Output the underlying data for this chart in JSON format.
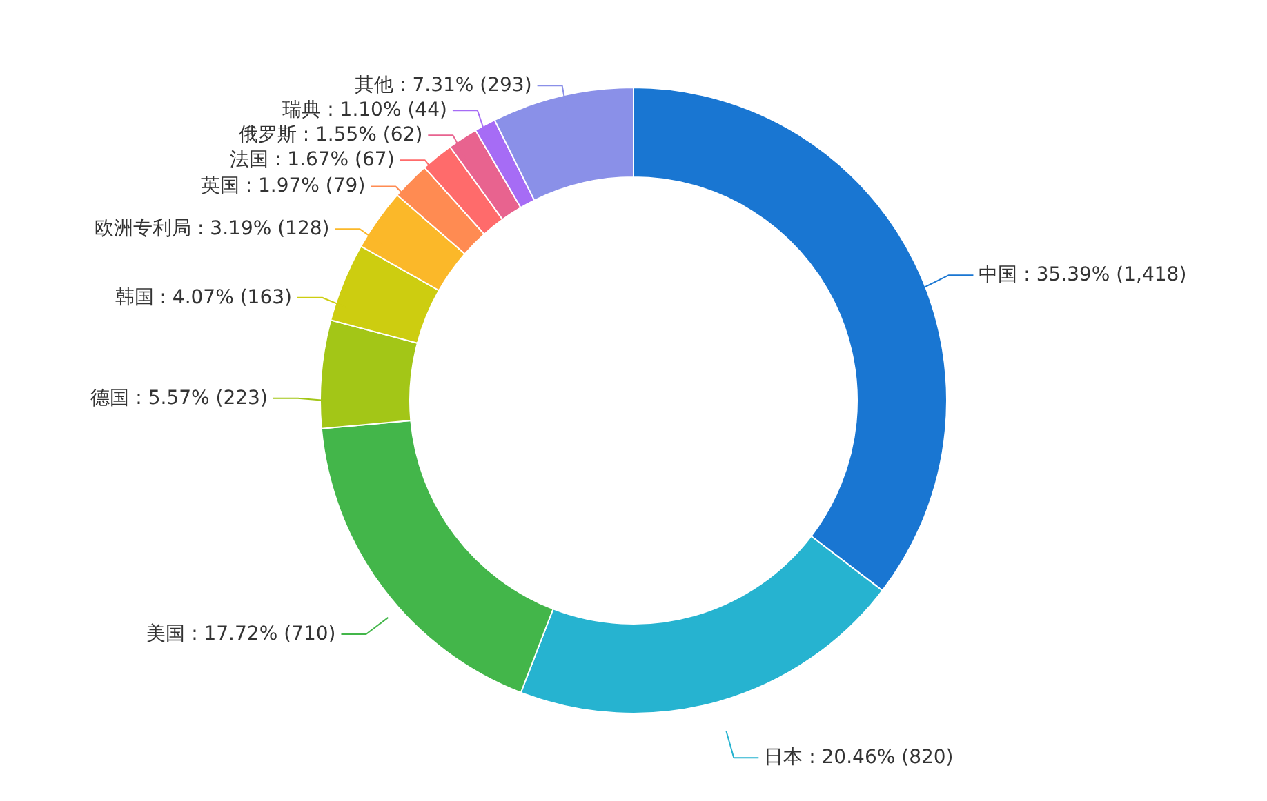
{
  "chart_data": {
    "type": "donut",
    "categories": [
      "中国",
      "日本",
      "美国",
      "德国",
      "韩国",
      "欧洲专利局",
      "英国",
      "法国",
      "俄罗斯",
      "瑞典",
      "其他"
    ],
    "values": [
      1418,
      820,
      710,
      223,
      163,
      128,
      79,
      67,
      62,
      44,
      293
    ],
    "value_labels": [
      "35.39% (1,418)",
      "20.46% (820)",
      "17.72% (710)",
      "5.57% (223)",
      "4.07% (163)",
      "3.19% (128)",
      "1.97% (79)",
      "1.67% (67)",
      "1.55% (62)",
      "1.10% (44)",
      "7.31% (293)"
    ],
    "colors": [
      "#1976d2",
      "#26b3d0",
      "#43b64a",
      "#a3c617",
      "#cdcd10",
      "#fbb829",
      "#ff8b52",
      "#ff6b6b",
      "#e8638f",
      "#a66cf5",
      "#8a90e8"
    ]
  }
}
